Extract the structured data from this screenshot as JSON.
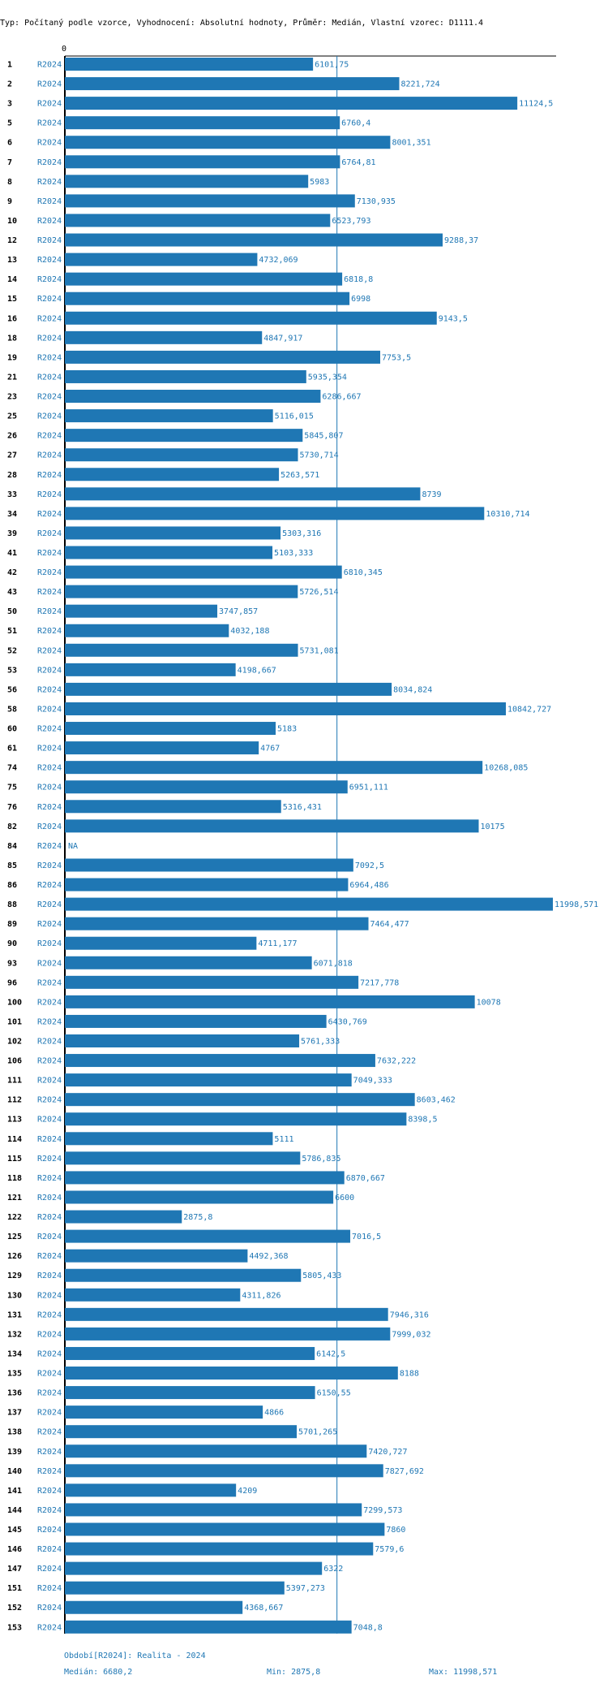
{
  "chart_data": {
    "type": "bar",
    "orientation": "horizontal",
    "title": "Typ: Počítaný podle vzorce, Vyhodnocení: Absolutní hodnoty, Průměr: Medián, Vlastní vzorec: D1111.4",
    "x_tick_label": "0",
    "xlim": [
      0,
      11998.571
    ],
    "median": 6680.2,
    "period_label": "R2024",
    "rows": [
      {
        "id": "1",
        "value": 6101.75,
        "label": "6101,75"
      },
      {
        "id": "2",
        "value": 8221.724,
        "label": "8221,724"
      },
      {
        "id": "3",
        "value": 11124.5,
        "label": "11124,5"
      },
      {
        "id": "5",
        "value": 6760.4,
        "label": "6760,4"
      },
      {
        "id": "6",
        "value": 8001.351,
        "label": "8001,351"
      },
      {
        "id": "7",
        "value": 6764.81,
        "label": "6764,81"
      },
      {
        "id": "8",
        "value": 5983,
        "label": "5983"
      },
      {
        "id": "9",
        "value": 7130.935,
        "label": "7130,935"
      },
      {
        "id": "10",
        "value": 6523.793,
        "label": "6523,793"
      },
      {
        "id": "12",
        "value": 9288.37,
        "label": "9288,37"
      },
      {
        "id": "13",
        "value": 4732.069,
        "label": "4732,069"
      },
      {
        "id": "14",
        "value": 6818.8,
        "label": "6818,8"
      },
      {
        "id": "15",
        "value": 6998,
        "label": "6998"
      },
      {
        "id": "16",
        "value": 9143.5,
        "label": "9143,5"
      },
      {
        "id": "18",
        "value": 4847.917,
        "label": "4847,917"
      },
      {
        "id": "19",
        "value": 7753.5,
        "label": "7753,5"
      },
      {
        "id": "21",
        "value": 5935.354,
        "label": "5935,354"
      },
      {
        "id": "23",
        "value": 6286.667,
        "label": "6286,667"
      },
      {
        "id": "25",
        "value": 5116.015,
        "label": "5116,015"
      },
      {
        "id": "26",
        "value": 5845.807,
        "label": "5845,807"
      },
      {
        "id": "27",
        "value": 5730.714,
        "label": "5730,714"
      },
      {
        "id": "28",
        "value": 5263.571,
        "label": "5263,571"
      },
      {
        "id": "33",
        "value": 8739,
        "label": "8739"
      },
      {
        "id": "34",
        "value": 10310.714,
        "label": "10310,714"
      },
      {
        "id": "39",
        "value": 5303.316,
        "label": "5303,316"
      },
      {
        "id": "41",
        "value": 5103.333,
        "label": "5103,333"
      },
      {
        "id": "42",
        "value": 6810.345,
        "label": "6810,345"
      },
      {
        "id": "43",
        "value": 5726.514,
        "label": "5726,514"
      },
      {
        "id": "50",
        "value": 3747.857,
        "label": "3747,857"
      },
      {
        "id": "51",
        "value": 4032.188,
        "label": "4032,188"
      },
      {
        "id": "52",
        "value": 5731.081,
        "label": "5731,081"
      },
      {
        "id": "53",
        "value": 4198.667,
        "label": "4198,667"
      },
      {
        "id": "56",
        "value": 8034.824,
        "label": "8034,824"
      },
      {
        "id": "58",
        "value": 10842.727,
        "label": "10842,727"
      },
      {
        "id": "60",
        "value": 5183,
        "label": "5183"
      },
      {
        "id": "61",
        "value": 4767,
        "label": "4767"
      },
      {
        "id": "74",
        "value": 10268.085,
        "label": "10268,085"
      },
      {
        "id": "75",
        "value": 6951.111,
        "label": "6951,111"
      },
      {
        "id": "76",
        "value": 5316.431,
        "label": "5316,431"
      },
      {
        "id": "82",
        "value": 10175,
        "label": "10175"
      },
      {
        "id": "84",
        "value": null,
        "label": "NA"
      },
      {
        "id": "85",
        "value": 7092.5,
        "label": "7092,5"
      },
      {
        "id": "86",
        "value": 6964.486,
        "label": "6964,486"
      },
      {
        "id": "88",
        "value": 11998.571,
        "label": "11998,571"
      },
      {
        "id": "89",
        "value": 7464.477,
        "label": "7464,477"
      },
      {
        "id": "90",
        "value": 4711.177,
        "label": "4711,177"
      },
      {
        "id": "93",
        "value": 6071.818,
        "label": "6071,818"
      },
      {
        "id": "96",
        "value": 7217.778,
        "label": "7217,778"
      },
      {
        "id": "100",
        "value": 10078,
        "label": "10078"
      },
      {
        "id": "101",
        "value": 6430.769,
        "label": "6430,769"
      },
      {
        "id": "102",
        "value": 5761.333,
        "label": "5761,333"
      },
      {
        "id": "106",
        "value": 7632.222,
        "label": "7632,222"
      },
      {
        "id": "111",
        "value": 7049.333,
        "label": "7049,333"
      },
      {
        "id": "112",
        "value": 8603.462,
        "label": "8603,462"
      },
      {
        "id": "113",
        "value": 8398.5,
        "label": "8398,5"
      },
      {
        "id": "114",
        "value": 5111,
        "label": "5111"
      },
      {
        "id": "115",
        "value": 5786.835,
        "label": "5786,835"
      },
      {
        "id": "118",
        "value": 6870.667,
        "label": "6870,667"
      },
      {
        "id": "121",
        "value": 6600,
        "label": "6600"
      },
      {
        "id": "122",
        "value": 2875.8,
        "label": "2875,8"
      },
      {
        "id": "125",
        "value": 7016.5,
        "label": "7016,5"
      },
      {
        "id": "126",
        "value": 4492.368,
        "label": "4492,368"
      },
      {
        "id": "129",
        "value": 5805.433,
        "label": "5805,433"
      },
      {
        "id": "130",
        "value": 4311.826,
        "label": "4311,826"
      },
      {
        "id": "131",
        "value": 7946.316,
        "label": "7946,316"
      },
      {
        "id": "132",
        "value": 7999.032,
        "label": "7999,032"
      },
      {
        "id": "134",
        "value": 6142.5,
        "label": "6142,5"
      },
      {
        "id": "135",
        "value": 8188,
        "label": "8188"
      },
      {
        "id": "136",
        "value": 6150.55,
        "label": "6150,55"
      },
      {
        "id": "137",
        "value": 4866,
        "label": "4866"
      },
      {
        "id": "138",
        "value": 5701.265,
        "label": "5701,265"
      },
      {
        "id": "139",
        "value": 7420.727,
        "label": "7420,727"
      },
      {
        "id": "140",
        "value": 7827.692,
        "label": "7827,692"
      },
      {
        "id": "141",
        "value": 4209,
        "label": "4209"
      },
      {
        "id": "144",
        "value": 7299.573,
        "label": "7299,573"
      },
      {
        "id": "145",
        "value": 7860,
        "label": "7860"
      },
      {
        "id": "146",
        "value": 7579.6,
        "label": "7579,6"
      },
      {
        "id": "147",
        "value": 6322,
        "label": "6322"
      },
      {
        "id": "151",
        "value": 5397.273,
        "label": "5397,273"
      },
      {
        "id": "152",
        "value": 4368.667,
        "label": "4368,667"
      },
      {
        "id": "153",
        "value": 7048.8,
        "label": "7048,8"
      }
    ],
    "footer": {
      "period_text": "Období[R2024]: Realita - 2024",
      "median_text": "Medián: 6680,2",
      "min_text": "Min: 2875,8",
      "max_text": "Max: 11998,571"
    },
    "colors": {
      "bar": "#1f77b4",
      "text": "#000000"
    }
  }
}
